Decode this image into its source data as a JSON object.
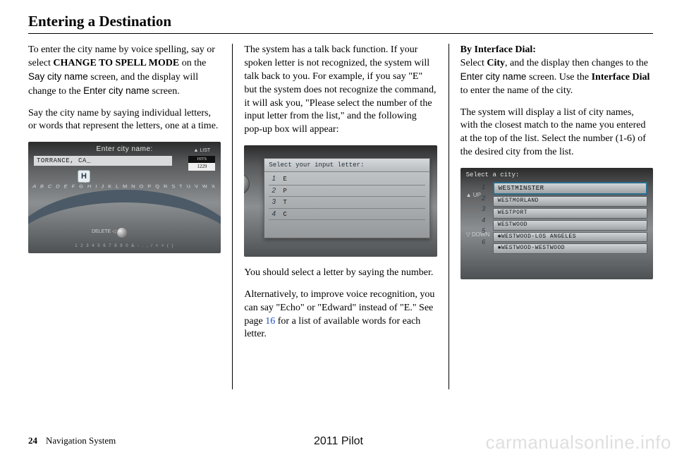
{
  "page": {
    "title": "Entering a Destination",
    "number": "24",
    "section": "Navigation System",
    "model": "2011 Pilot",
    "watermark": "carmanualsonline.info"
  },
  "col1": {
    "p1a": "To enter the city name by voice spelling, say or select ",
    "p1b": "CHANGE TO SPELL MODE",
    "p1c": " on the ",
    "p1d": "Say city name",
    "p1e": " screen, and the display will change to the ",
    "p1f": "Enter city name",
    "p1g": " screen.",
    "p2": "Say the city name by saying individual letters, or words that represent the letters, one at a time.",
    "screenshot": {
      "header": "Enter city name:",
      "input": "TORRANCE, CA_",
      "list_label": "▲ LIST",
      "hits_label": "HITS",
      "hits_value": "1229",
      "bubble": "H",
      "letters": "A B C D E F G H I J K L M N O P Q R S T U V W X Y Z",
      "delete": "DELETE ◁",
      "numrow": "1 2 3 4 5 6 7 8 9 0 & - . , / < > ( )"
    }
  },
  "col2": {
    "p1": "The system has a talk back function. If your spoken letter is not recognized, the system will talk back to you. For example, if you say \"E\" but the system does not recognize the command, it will ask you, \"Please select the number of the input letter from the list,\" and the following pop-up box will appear:",
    "screenshot": {
      "header": "Select your input letter:",
      "rows": [
        {
          "n": "1",
          "l": "E"
        },
        {
          "n": "2",
          "l": "P"
        },
        {
          "n": "3",
          "l": "T"
        },
        {
          "n": "4",
          "l": "C"
        }
      ]
    },
    "p2": "You should select a letter by saying the number.",
    "p3a": "Alternatively, to improve voice recognition, you can say \"Echo\" or \"Edward\" instead of \"E.\" See page ",
    "p3link": "16",
    "p3b": " for a list of available words for each letter."
  },
  "col3": {
    "h1": "By Interface Dial:",
    "p1a": "Select ",
    "p1b": "City",
    "p1c": ", and the display then changes to the ",
    "p1d": "Enter city name",
    "p1e": " screen. Use the ",
    "p1f": "Interface Dial",
    "p1g": " to enter the name of the city.",
    "p2": "The system will display a list of city names, with the closest match to the name you entered at the top of the list. Select the number (1-6) of the desired city from the list.",
    "screenshot": {
      "header": "Select a city:",
      "up": "▲\nUP",
      "down": "▽\nDOWN",
      "nums": [
        "1",
        "2",
        "3",
        "4",
        "5",
        "6"
      ],
      "rows": [
        "WESTMINSTER",
        "WESTMORLAND",
        "WESTPORT",
        "WESTWOOD",
        "✱WESTWOOD-LOS ANGELES",
        "✱WESTWOOD-WESTWOOD"
      ]
    }
  }
}
